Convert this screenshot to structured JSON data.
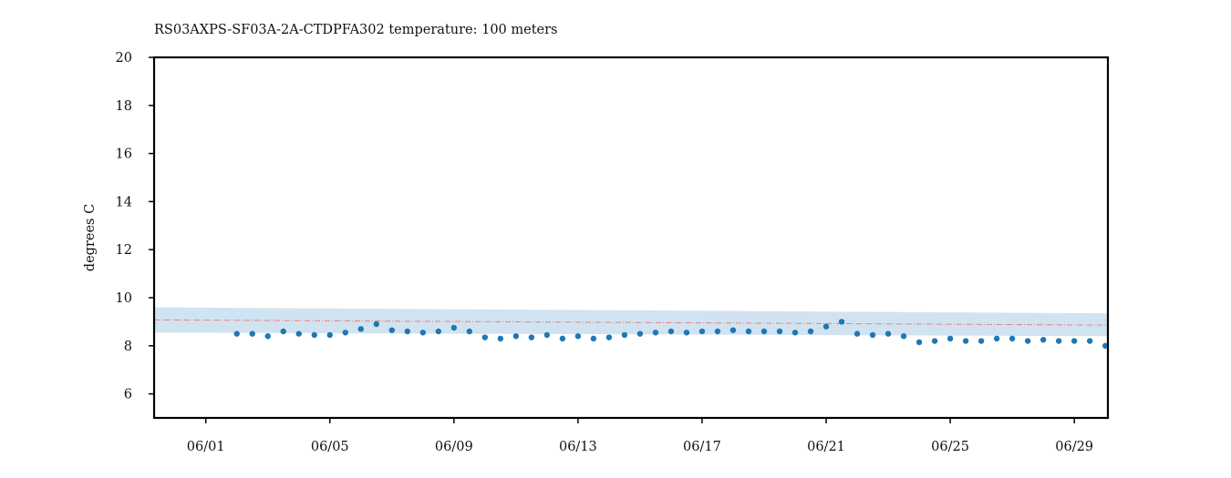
{
  "chart_data": {
    "type": "scatter",
    "title": "RS03AXPS-SF03A-2A-CTDPFA302 temperature: 100 meters",
    "xlabel": "",
    "ylabel": "degrees C",
    "xlim": [
      "2021-05-30T08:00",
      "2021-06-30T02:00"
    ],
    "ylim": [
      5,
      20
    ],
    "yticks": [
      6,
      8,
      10,
      12,
      14,
      16,
      18,
      20
    ],
    "xtick_dates": [
      "2021-06-01",
      "2021-06-05",
      "2021-06-09",
      "2021-06-13",
      "2021-06-17",
      "2021-06-21",
      "2021-06-25",
      "2021-06-29"
    ],
    "xtick_labels": [
      "06/01",
      "06/05",
      "06/09",
      "06/13",
      "06/17",
      "06/21",
      "06/25",
      "06/29"
    ],
    "grid": false,
    "legend": "none",
    "colors": {
      "points": "#1f77b4",
      "band": "#cfe2f0",
      "mean_line": "#e87f7f",
      "axes": "#000000"
    },
    "band": {
      "x": [
        "2021-05-30T08:00",
        "2021-06-30T02:00"
      ],
      "upper": [
        9.6,
        9.35
      ],
      "lower": [
        8.55,
        8.4
      ]
    },
    "mean_line": {
      "x": [
        "2021-05-30T08:00",
        "2021-06-30T02:00"
      ],
      "y": [
        9.08,
        8.86
      ]
    },
    "series": [
      {
        "x": [
          "2021-06-02T00:00",
          "2021-06-02T12:00",
          "2021-06-03T00:00",
          "2021-06-03T12:00",
          "2021-06-04T00:00",
          "2021-06-04T12:00",
          "2021-06-05T00:00",
          "2021-06-05T12:00",
          "2021-06-06T00:00",
          "2021-06-06T12:00",
          "2021-06-07T00:00",
          "2021-06-07T12:00",
          "2021-06-08T00:00",
          "2021-06-08T12:00",
          "2021-06-09T00:00",
          "2021-06-09T12:00",
          "2021-06-10T00:00",
          "2021-06-10T12:00",
          "2021-06-11T00:00",
          "2021-06-11T12:00",
          "2021-06-12T00:00",
          "2021-06-12T12:00",
          "2021-06-13T00:00",
          "2021-06-13T12:00",
          "2021-06-14T00:00",
          "2021-06-14T12:00",
          "2021-06-15T00:00",
          "2021-06-15T12:00",
          "2021-06-16T00:00",
          "2021-06-16T12:00",
          "2021-06-17T00:00",
          "2021-06-17T12:00",
          "2021-06-18T00:00",
          "2021-06-18T12:00",
          "2021-06-19T00:00",
          "2021-06-19T12:00",
          "2021-06-20T00:00",
          "2021-06-20T12:00",
          "2021-06-21T00:00",
          "2021-06-21T12:00",
          "2021-06-22T00:00",
          "2021-06-22T12:00",
          "2021-06-23T00:00",
          "2021-06-23T12:00",
          "2021-06-24T00:00",
          "2021-06-24T12:00",
          "2021-06-25T00:00",
          "2021-06-25T12:00",
          "2021-06-26T00:00",
          "2021-06-26T12:00",
          "2021-06-27T00:00",
          "2021-06-27T12:00",
          "2021-06-28T00:00",
          "2021-06-28T12:00",
          "2021-06-29T00:00",
          "2021-06-29T12:00",
          "2021-06-30T00:00"
        ],
        "y": [
          8.5,
          8.5,
          8.4,
          8.6,
          8.5,
          8.45,
          8.45,
          8.55,
          8.7,
          8.9,
          8.65,
          8.6,
          8.55,
          8.6,
          8.75,
          8.6,
          8.35,
          8.3,
          8.4,
          8.35,
          8.45,
          8.3,
          8.4,
          8.3,
          8.35,
          8.45,
          8.5,
          8.55,
          8.6,
          8.55,
          8.6,
          8.6,
          8.65,
          8.6,
          8.6,
          8.6,
          8.55,
          8.6,
          8.8,
          9.0,
          8.5,
          8.45,
          8.5,
          8.4,
          8.15,
          8.2,
          8.3,
          8.2,
          8.2,
          8.3,
          8.3,
          8.2,
          8.25,
          8.2,
          8.2,
          8.2,
          8.0
        ]
      }
    ]
  }
}
